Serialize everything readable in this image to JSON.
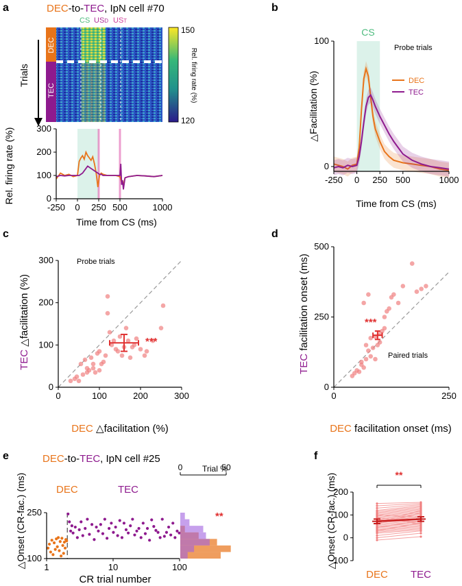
{
  "colors": {
    "dec": "#e8741a",
    "tec": "#8e1a8e",
    "cs": "#5ec3a0",
    "red": "#e03030",
    "pink": "#e060b0",
    "us_d": "#b0309a",
    "us_t": "#d0409a"
  },
  "panels": {
    "a": {
      "label": "a",
      "title_dec": "DEC",
      "title_mid": "-to-",
      "title_tec": "TEC",
      "title_rest": ", IpN cell #70",
      "markers": {
        "cs": "CS",
        "usd": "US",
        "usd_sub": "D",
        "ust": "US",
        "ust_sub": "T"
      },
      "raster": {
        "ylabel": "Trials",
        "dec_label": "DEC",
        "tec_label": "TEC",
        "colorbar_label": "Rel. firing rate (%)",
        "colorbar_max": "150",
        "colorbar_min": "120"
      },
      "chart_data": {
        "type": "line",
        "xlabel": "Time from CS (ms)",
        "ylabel": "Rel. firing rate (%)",
        "xlim": [
          -250,
          1000
        ],
        "ylim": [
          0,
          300
        ],
        "xticks": [
          "-250",
          "0",
          "250",
          "500",
          "1000"
        ],
        "yticks": [
          "0",
          "100",
          "200",
          "300"
        ],
        "series": [
          {
            "name": "DEC",
            "x": [
              -250,
              -200,
              -150,
              -100,
              -50,
              0,
              20,
              40,
              60,
              80,
              100,
              120,
              140,
              160,
              180,
              200,
              220,
              240,
              260,
              280,
              300,
              350,
              400,
              450,
              500,
              520,
              540,
              560,
              600,
              700,
              800,
              900,
              1000
            ],
            "y": [
              85,
              110,
              100,
              105,
              95,
              100,
              160,
              175,
              185,
              170,
              200,
              185,
              175,
              165,
              180,
              150,
              110,
              50,
              100,
              110,
              105,
              100,
              100,
              100,
              95,
              70,
              60,
              90,
              95,
              100,
              98,
              95,
              100
            ]
          },
          {
            "name": "TEC",
            "x": [
              -250,
              -200,
              -150,
              -100,
              -50,
              0,
              20,
              40,
              60,
              80,
              100,
              120,
              140,
              160,
              180,
              200,
              220,
              240,
              260,
              280,
              300,
              350,
              400,
              450,
              500,
              510,
              520,
              530,
              540,
              560,
              600,
              700,
              800,
              900,
              1000
            ],
            "y": [
              95,
              100,
              98,
              100,
              100,
              100,
              100,
              105,
              110,
              120,
              130,
              140,
              135,
              130,
              125,
              120,
              115,
              110,
              105,
              105,
              100,
              100,
              100,
              100,
              100,
              150,
              60,
              80,
              40,
              90,
              95,
              100,
              98,
              95,
              100
            ]
          }
        ]
      }
    },
    "b": {
      "label": "b",
      "cs": "CS",
      "note": "Probe trials",
      "chart_data": {
        "type": "line",
        "xlabel": "Time from CS (ms)",
        "ylabel": "△Facilitation (%)",
        "xlim": [
          -250,
          1000
        ],
        "ylim": [
          -5,
          100
        ],
        "xticks": [
          "-250",
          "0",
          "250",
          "500",
          "1000"
        ],
        "yticks": [
          "0",
          "100"
        ],
        "series": [
          {
            "name": "DEC",
            "x": [
              -250,
              -200,
              -150,
              -100,
              -50,
              0,
              25,
              50,
              75,
              100,
              125,
              150,
              175,
              200,
              250,
              300,
              350,
              400,
              450,
              500,
              600,
              700,
              800,
              900,
              1000
            ],
            "y": [
              2,
              1,
              0,
              -2,
              1,
              2,
              15,
              45,
              70,
              78,
              72,
              55,
              40,
              30,
              20,
              12,
              8,
              5,
              4,
              3,
              2,
              1,
              0,
              -2,
              -3
            ]
          },
          {
            "name": "TEC",
            "x": [
              -250,
              -200,
              -150,
              -100,
              -50,
              0,
              25,
              50,
              75,
              100,
              125,
              150,
              175,
              200,
              250,
              300,
              350,
              400,
              450,
              500,
              600,
              700,
              800,
              900,
              1000
            ],
            "y": [
              -1,
              0,
              -1,
              1,
              0,
              1,
              8,
              20,
              35,
              48,
              55,
              57,
              53,
              48,
              40,
              33,
              26,
              20,
              15,
              10,
              5,
              2,
              0,
              -1,
              -2
            ]
          }
        ]
      }
    },
    "c": {
      "label": "c",
      "note": "Probe trials",
      "stars": "***",
      "xlabel_prefix": "DEC",
      "xlabel": " △facilitation (%)",
      "ylabel_prefix": "TEC",
      "ylabel": " △facilitation (%)",
      "chart_data": {
        "type": "scatter",
        "xlim": [
          0,
          300
        ],
        "ylim": [
          0,
          300
        ],
        "xticks": [
          "0",
          "100",
          "200",
          "300"
        ],
        "yticks": [
          "0",
          "100",
          "200",
          "300"
        ],
        "x": [
          30,
          40,
          45,
          50,
          55,
          60,
          65,
          70,
          70,
          75,
          80,
          85,
          85,
          90,
          95,
          100,
          100,
          105,
          110,
          115,
          120,
          120,
          125,
          130,
          135,
          140,
          145,
          150,
          155,
          160,
          165,
          170,
          175,
          180,
          185,
          190,
          200,
          210,
          215,
          230,
          250,
          255
        ],
        "y": [
          15,
          20,
          25,
          15,
          55,
          30,
          65,
          35,
          45,
          40,
          70,
          55,
          45,
          35,
          80,
          40,
          85,
          55,
          60,
          75,
          175,
          215,
          130,
          100,
          110,
          90,
          85,
          120,
          75,
          95,
          140,
          110,
          70,
          95,
          100,
          115,
          90,
          75,
          85,
          110,
          140,
          193
        ],
        "summary": {
          "x": 160,
          "y": 105,
          "xerr": 35,
          "yerr": 20
        }
      }
    },
    "d": {
      "label": "d",
      "note": "Paired trials",
      "stars": "***",
      "xlabel_prefix": "DEC",
      "xlabel": " facilitation onset (ms)",
      "ylabel_prefix": "TEC",
      "ylabel": " facilitation onset (ms)",
      "chart_data": {
        "type": "scatter",
        "xlim": [
          0,
          250
        ],
        "ylim": [
          0,
          500
        ],
        "xticks": [
          "0",
          "250"
        ],
        "yticks": [
          "0",
          "250",
          "500"
        ],
        "x": [
          40,
          45,
          50,
          55,
          60,
          60,
          65,
          70,
          70,
          75,
          80,
          80,
          85,
          90,
          90,
          95,
          100,
          100,
          105,
          110,
          110,
          115,
          120,
          125,
          130,
          140,
          150,
          170,
          180,
          190,
          200,
          65,
          75
        ],
        "y": [
          40,
          50,
          60,
          55,
          80,
          90,
          70,
          100,
          150,
          130,
          110,
          175,
          140,
          180,
          100,
          150,
          160,
          190,
          200,
          210,
          250,
          270,
          280,
          320,
          330,
          300,
          360,
          440,
          340,
          350,
          360,
          300,
          330
        ],
        "summary": {
          "x": 95,
          "y": 185,
          "xerr": 10,
          "yerr": 15
        }
      }
    },
    "e": {
      "label": "e",
      "title_dec": "DEC",
      "title_mid": "-to-",
      "title_tec": "TEC",
      "title_rest": ", IpN cell #25",
      "dec_label": "DEC",
      "tec_label": "TEC",
      "hist_label": "Trial %",
      "stars": "**",
      "chart_data": {
        "type": "scatter",
        "xlabel": "CR trial number",
        "ylabel": "△Onset (CR-fac.) (ms)",
        "xscale": "log",
        "xlim": [
          1,
          100
        ],
        "ylim": [
          -100,
          250
        ],
        "xticks": [
          "1",
          "10",
          "100"
        ],
        "yticks": [
          "-100",
          "250"
        ],
        "hist_xticks": [
          "0",
          "50"
        ],
        "series": [
          {
            "name": "DEC",
            "x": [
              1.05,
              1.1,
              1.15,
              1.2,
              1.25,
              1.3,
              1.35,
              1.4,
              1.45,
              1.5,
              1.55,
              1.6,
              1.65,
              1.7,
              1.75,
              1.8,
              1.85,
              1.9,
              1.95,
              2.0
            ],
            "y": [
              -20,
              10,
              -50,
              40,
              -70,
              20,
              -30,
              50,
              -10,
              60,
              -40,
              30,
              -80,
              55,
              0,
              -60,
              25,
              -20,
              45,
              35
            ]
          },
          {
            "name": "TEC",
            "x": [
              2.1,
              2.2,
              2.3,
              2.4,
              2.5,
              2.7,
              2.9,
              3.1,
              3.3,
              3.5,
              3.8,
              4.1,
              4.4,
              4.8,
              5.2,
              5.6,
              6.0,
              6.5,
              7.0,
              7.5,
              8.1,
              8.7,
              9.4,
              10.1,
              10.9,
              11.7,
              12.6,
              13.6,
              14.6,
              15.7,
              16.9,
              18.2,
              19.6,
              21.1,
              22.7,
              24.4,
              26.3,
              28.3,
              30.5,
              32.8,
              35.3,
              38.0,
              40.9,
              44.0,
              47.4,
              51.0,
              54.9,
              59.1,
              63.6,
              68.5,
              73.7,
              79.3,
              85.4,
              91.9,
              98.9
            ],
            "y": [
              240,
              180,
              110,
              150,
              95,
              140,
              60,
              120,
              180,
              75,
              130,
              200,
              85,
              160,
              45,
              140,
              110,
              160,
              90,
              200,
              55,
              130,
              170,
              100,
              140,
              75,
              190,
              60,
              170,
              120,
              95,
              150,
              200,
              80,
              110,
              130,
              60,
              170,
              90,
              130,
              40,
              195,
              145,
              115,
              100,
              60,
              200,
              70,
              100,
              140,
              80,
              170,
              60,
              110,
              95
            ]
          }
        ],
        "histogram": {
          "bins": [
            "-100--50",
            "-50-0",
            "0-50",
            "50-100",
            "100-150",
            "150-200",
            "200-250"
          ],
          "dec": [
            44,
            55,
            40,
            20,
            5,
            0,
            0
          ],
          "tec": [
            8,
            15,
            32,
            28,
            25,
            10,
            5
          ]
        }
      }
    },
    "f": {
      "label": "f",
      "stars": "**",
      "xlabel_dec": "DEC",
      "xlabel_tec": "TEC",
      "chart_data": {
        "type": "line",
        "ylabel": "△Onset (CR-fac.) (ms)",
        "categories": [
          "DEC",
          "TEC"
        ],
        "ylim": [
          -100,
          200
        ],
        "yticks": [
          "-100",
          "0",
          "100",
          "200"
        ],
        "pairs": [
          [
            -10,
            5
          ],
          [
            0,
            20
          ],
          [
            10,
            30
          ],
          [
            20,
            35
          ],
          [
            25,
            40
          ],
          [
            30,
            45
          ],
          [
            35,
            50
          ],
          [
            40,
            55
          ],
          [
            45,
            60
          ],
          [
            50,
            65
          ],
          [
            55,
            70
          ],
          [
            60,
            75
          ],
          [
            65,
            80
          ],
          [
            70,
            85
          ],
          [
            72,
            90
          ],
          [
            75,
            95
          ],
          [
            80,
            100
          ],
          [
            85,
            105
          ],
          [
            90,
            110
          ],
          [
            95,
            115
          ],
          [
            100,
            120
          ],
          [
            105,
            125
          ],
          [
            110,
            130
          ],
          [
            115,
            135
          ],
          [
            120,
            140
          ],
          [
            130,
            145
          ],
          [
            140,
            150
          ],
          [
            150,
            155
          ],
          [
            60,
            110
          ],
          [
            80,
            70
          ],
          [
            90,
            60
          ],
          [
            100,
            90
          ],
          [
            45,
            75
          ],
          [
            30,
            65
          ],
          [
            65,
            120
          ]
        ],
        "means": [
          72,
          82
        ],
        "errs": [
          10,
          10
        ]
      }
    }
  }
}
